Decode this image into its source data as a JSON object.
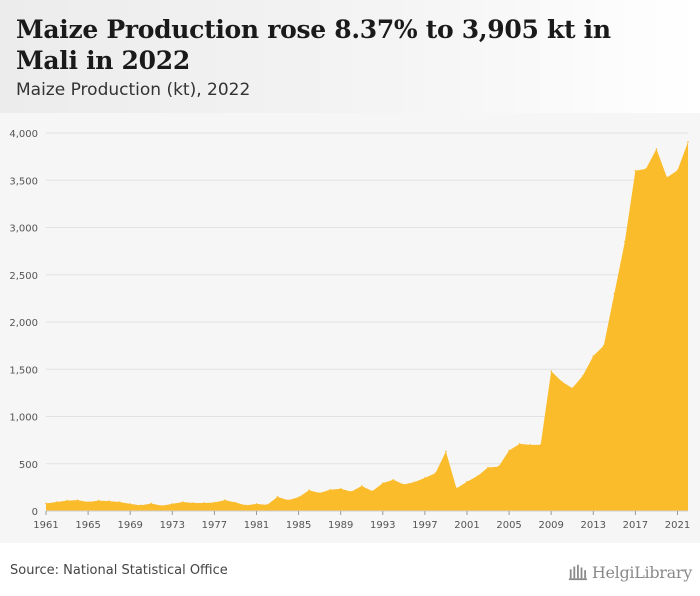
{
  "header": {
    "title": "Maize Production rose 8.37% to 3,905 kt in Mali in 2022",
    "subtitle": "Maize Production (kt), 2022"
  },
  "footer": {
    "source": "Source: National Statistical Office",
    "logo_text": "HelgiLibrary"
  },
  "colors": {
    "area_fill": "#fbbc2c",
    "grid": "#e2e2e2",
    "background": "#f6f6f6"
  },
  "chart_data": {
    "type": "area",
    "title": "Maize Production rose 8.37% to 3,905 kt in Mali in 2022",
    "subtitle": "Maize Production (kt), 2022",
    "xlabel": "",
    "ylabel": "",
    "ylim": [
      0,
      4000
    ],
    "xlim": [
      1961,
      2022
    ],
    "grid": true,
    "yticks": [
      0,
      500,
      1000,
      1500,
      2000,
      2500,
      3000,
      3500,
      4000
    ],
    "ytick_labels": [
      "0",
      "500",
      "1,000",
      "1,500",
      "2,000",
      "2,500",
      "3,000",
      "3,500",
      "4,000"
    ],
    "xticks": [
      1961,
      1965,
      1969,
      1973,
      1977,
      1981,
      1985,
      1989,
      1993,
      1997,
      2001,
      2005,
      2009,
      2013,
      2017,
      2021
    ],
    "x": [
      1961,
      1962,
      1963,
      1964,
      1965,
      1966,
      1967,
      1968,
      1969,
      1970,
      1971,
      1972,
      1973,
      1974,
      1975,
      1976,
      1977,
      1978,
      1979,
      1980,
      1981,
      1982,
      1983,
      1984,
      1985,
      1986,
      1987,
      1988,
      1989,
      1990,
      1991,
      1992,
      1993,
      1994,
      1995,
      1996,
      1997,
      1998,
      1999,
      2000,
      2001,
      2002,
      2003,
      2004,
      2005,
      2006,
      2007,
      2008,
      2009,
      2010,
      2011,
      2012,
      2013,
      2014,
      2015,
      2016,
      2017,
      2018,
      2019,
      2020,
      2021,
      2022
    ],
    "series": [
      {
        "values": [
          80,
          95,
          110,
          115,
          95,
          110,
          105,
          95,
          75,
          60,
          80,
          55,
          75,
          95,
          85,
          85,
          90,
          115,
          90,
          60,
          75,
          65,
          150,
          115,
          145,
          220,
          190,
          225,
          235,
          205,
          265,
          210,
          295,
          330,
          280,
          305,
          350,
          400,
          630,
          240,
          310,
          370,
          460,
          470,
          640,
          710,
          700,
          700,
          1480,
          1370,
          1300,
          1430,
          1640,
          1750,
          2300,
          2850,
          3600,
          3620,
          3830,
          3530,
          3604,
          3905
        ]
      }
    ]
  }
}
